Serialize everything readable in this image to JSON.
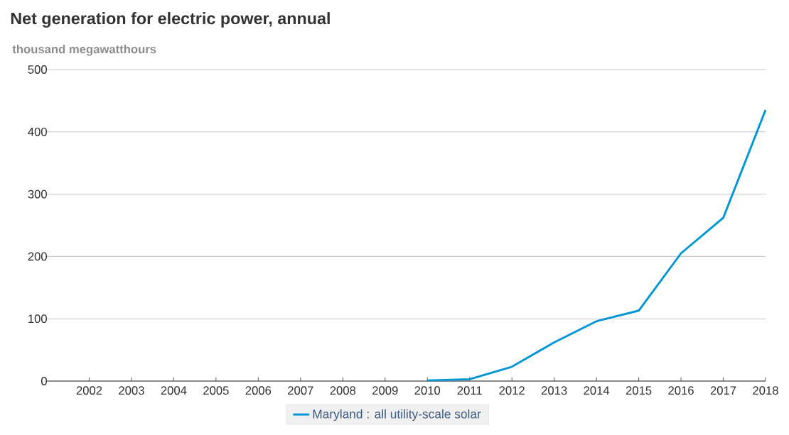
{
  "chart_data": {
    "type": "line",
    "title": "Net generation for electric power, annual",
    "ylabel": "thousand megawatthours",
    "x": [
      2010,
      2011,
      2012,
      2013,
      2014,
      2015,
      2016,
      2017,
      2018
    ],
    "series": [
      {
        "name": "Maryland : all utility-scale solar",
        "color": "#0096d6",
        "values": [
          1,
          3,
          23,
          62,
          96,
          113,
          205,
          262,
          435
        ]
      }
    ],
    "xlim": [
      2001,
      2018
    ],
    "xticks": [
      2002,
      2003,
      2004,
      2005,
      2006,
      2007,
      2008,
      2009,
      2010,
      2011,
      2012,
      2013,
      2014,
      2015,
      2016,
      2017,
      2018
    ],
    "ylim": [
      0,
      500
    ],
    "yticks": [
      0,
      100,
      200,
      300,
      400,
      500
    ],
    "grid": "y",
    "legend": "bottom"
  }
}
